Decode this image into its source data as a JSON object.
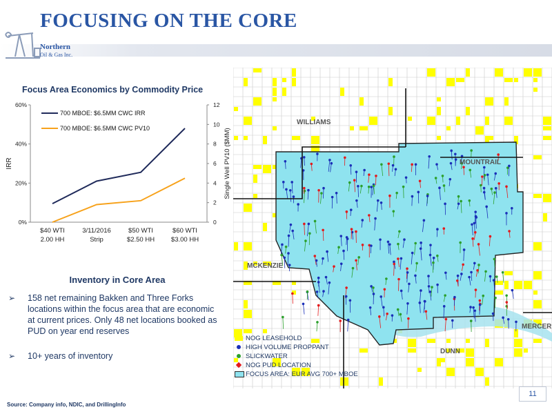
{
  "header": {
    "title": "FOCUSING ON THE CORE",
    "logo_line1": "Northern",
    "logo_line2": "Oil & Gas Inc."
  },
  "chart_title": "Focus Area Economics by Commodity Price",
  "chart_data": {
    "type": "line",
    "categories": [
      [
        "$40 WTI",
        "2.00 HH"
      ],
      [
        "3/11/2016",
        "Strip"
      ],
      [
        "$50 WTI",
        "$2.50 HH"
      ],
      [
        "$60 WTI",
        "$3.00 HH"
      ]
    ],
    "series": [
      {
        "name": "700 MBOE: $6.5MM CWC IRR",
        "axis": "left",
        "color": "#1f2a5a",
        "values": [
          0.095,
          0.21,
          0.255,
          0.48
        ]
      },
      {
        "name": "700 MBOE: $6.5MM CWC PV10",
        "axis": "right",
        "color": "#f7a21b",
        "values": [
          0.0,
          1.8,
          2.2,
          4.5
        ]
      }
    ],
    "ylabel_left": "IRR",
    "ylabel_right": "Single Well PV10 ($MM)",
    "yticks_left": [
      "0%",
      "20%",
      "40%",
      "60%"
    ],
    "ylim_left": [
      0,
      0.6
    ],
    "yticks_right": [
      "0",
      "2",
      "4",
      "6",
      "8",
      "10",
      "12"
    ],
    "ylim_right": [
      0,
      12
    ],
    "legend_position": "top-left",
    "grid": false
  },
  "inventory": {
    "title": "Inventory in Core Area",
    "bullets": [
      "158 net remaining Bakken and Three Forks locations within the focus area that are economic at current prices.  Only 48 net locations booked as PUD on year end reserves",
      "10+ years of inventory"
    ],
    "arrow_glyph": "➢"
  },
  "map": {
    "counties": [
      "WILLIAMS",
      "MOUNTRAIL",
      "MCKENZIE",
      "MERCER",
      "DUNN"
    ],
    "legend": [
      {
        "label": "NOG LEASEHOLD",
        "swatch": "yellow"
      },
      {
        "label": "HIGH VOLUME PROPPANT",
        "swatch": "dot",
        "color": "#1a2fb8"
      },
      {
        "label": "SLICKWATER",
        "swatch": "dot",
        "color": "#2ca02c"
      },
      {
        "label": "NOG PUD LOCATION",
        "swatch": "diamond",
        "color": "#e31a1c"
      },
      {
        "label": "FOCUS AREA: EUR AVG 700+ MBOE",
        "swatch": "focus"
      }
    ]
  },
  "footer": {
    "source": "Source:  Company info, NDIC, and DrillingInfo",
    "page_number": "11"
  }
}
